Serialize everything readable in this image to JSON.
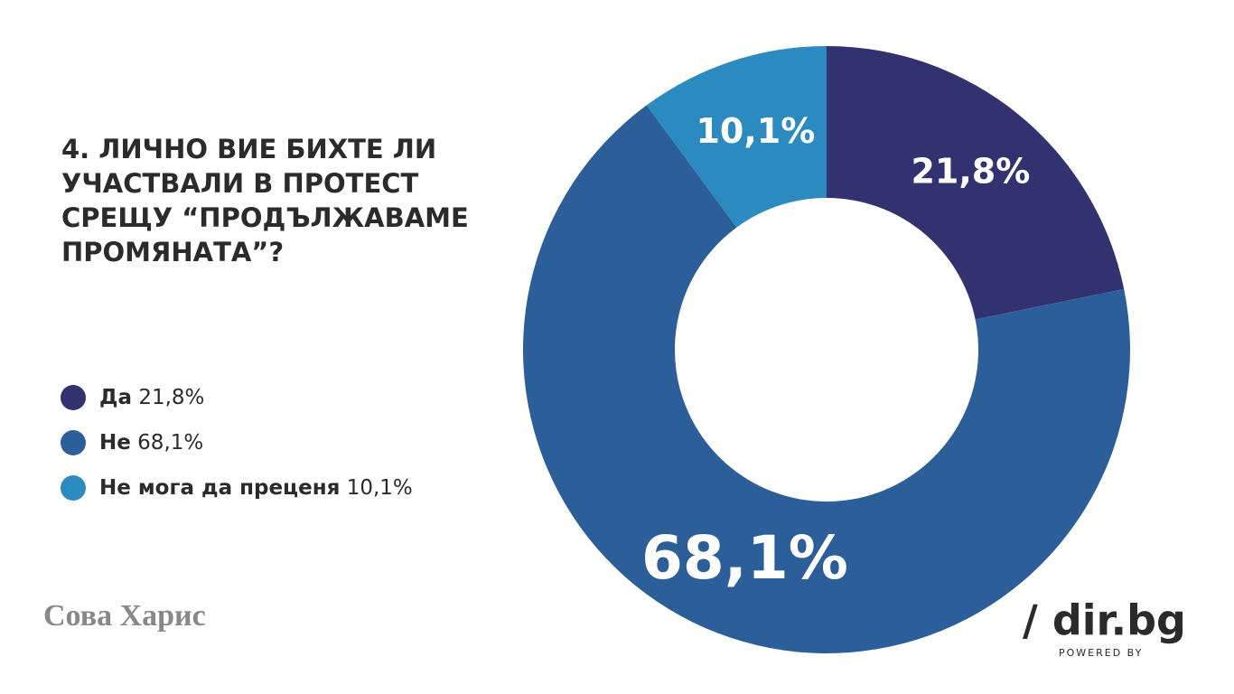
{
  "chart_data": {
    "type": "pie",
    "title": "4. ЛИЧНО ВИЕ БИХТЕ ЛИ УЧАСТВАЛИ В ПРОТЕСТ СРЕЩУ “ПРОДЪЛЖАВАМЕ ПРОМЯНАТА”?",
    "categories": [
      "Да",
      "Не",
      "Не мога да преценя"
    ],
    "values": [
      21.8,
      68.1,
      10.1
    ],
    "value_labels": [
      "21,8%",
      "68,1%",
      "10,1%"
    ],
    "colors": [
      "#31326f",
      "#2c5f9a",
      "#2b8bc0"
    ],
    "donut": true,
    "legend": "left"
  },
  "branding": {
    "source": "Сова Харис",
    "site": "/ dir.bg",
    "powered": "POWERED BY"
  }
}
